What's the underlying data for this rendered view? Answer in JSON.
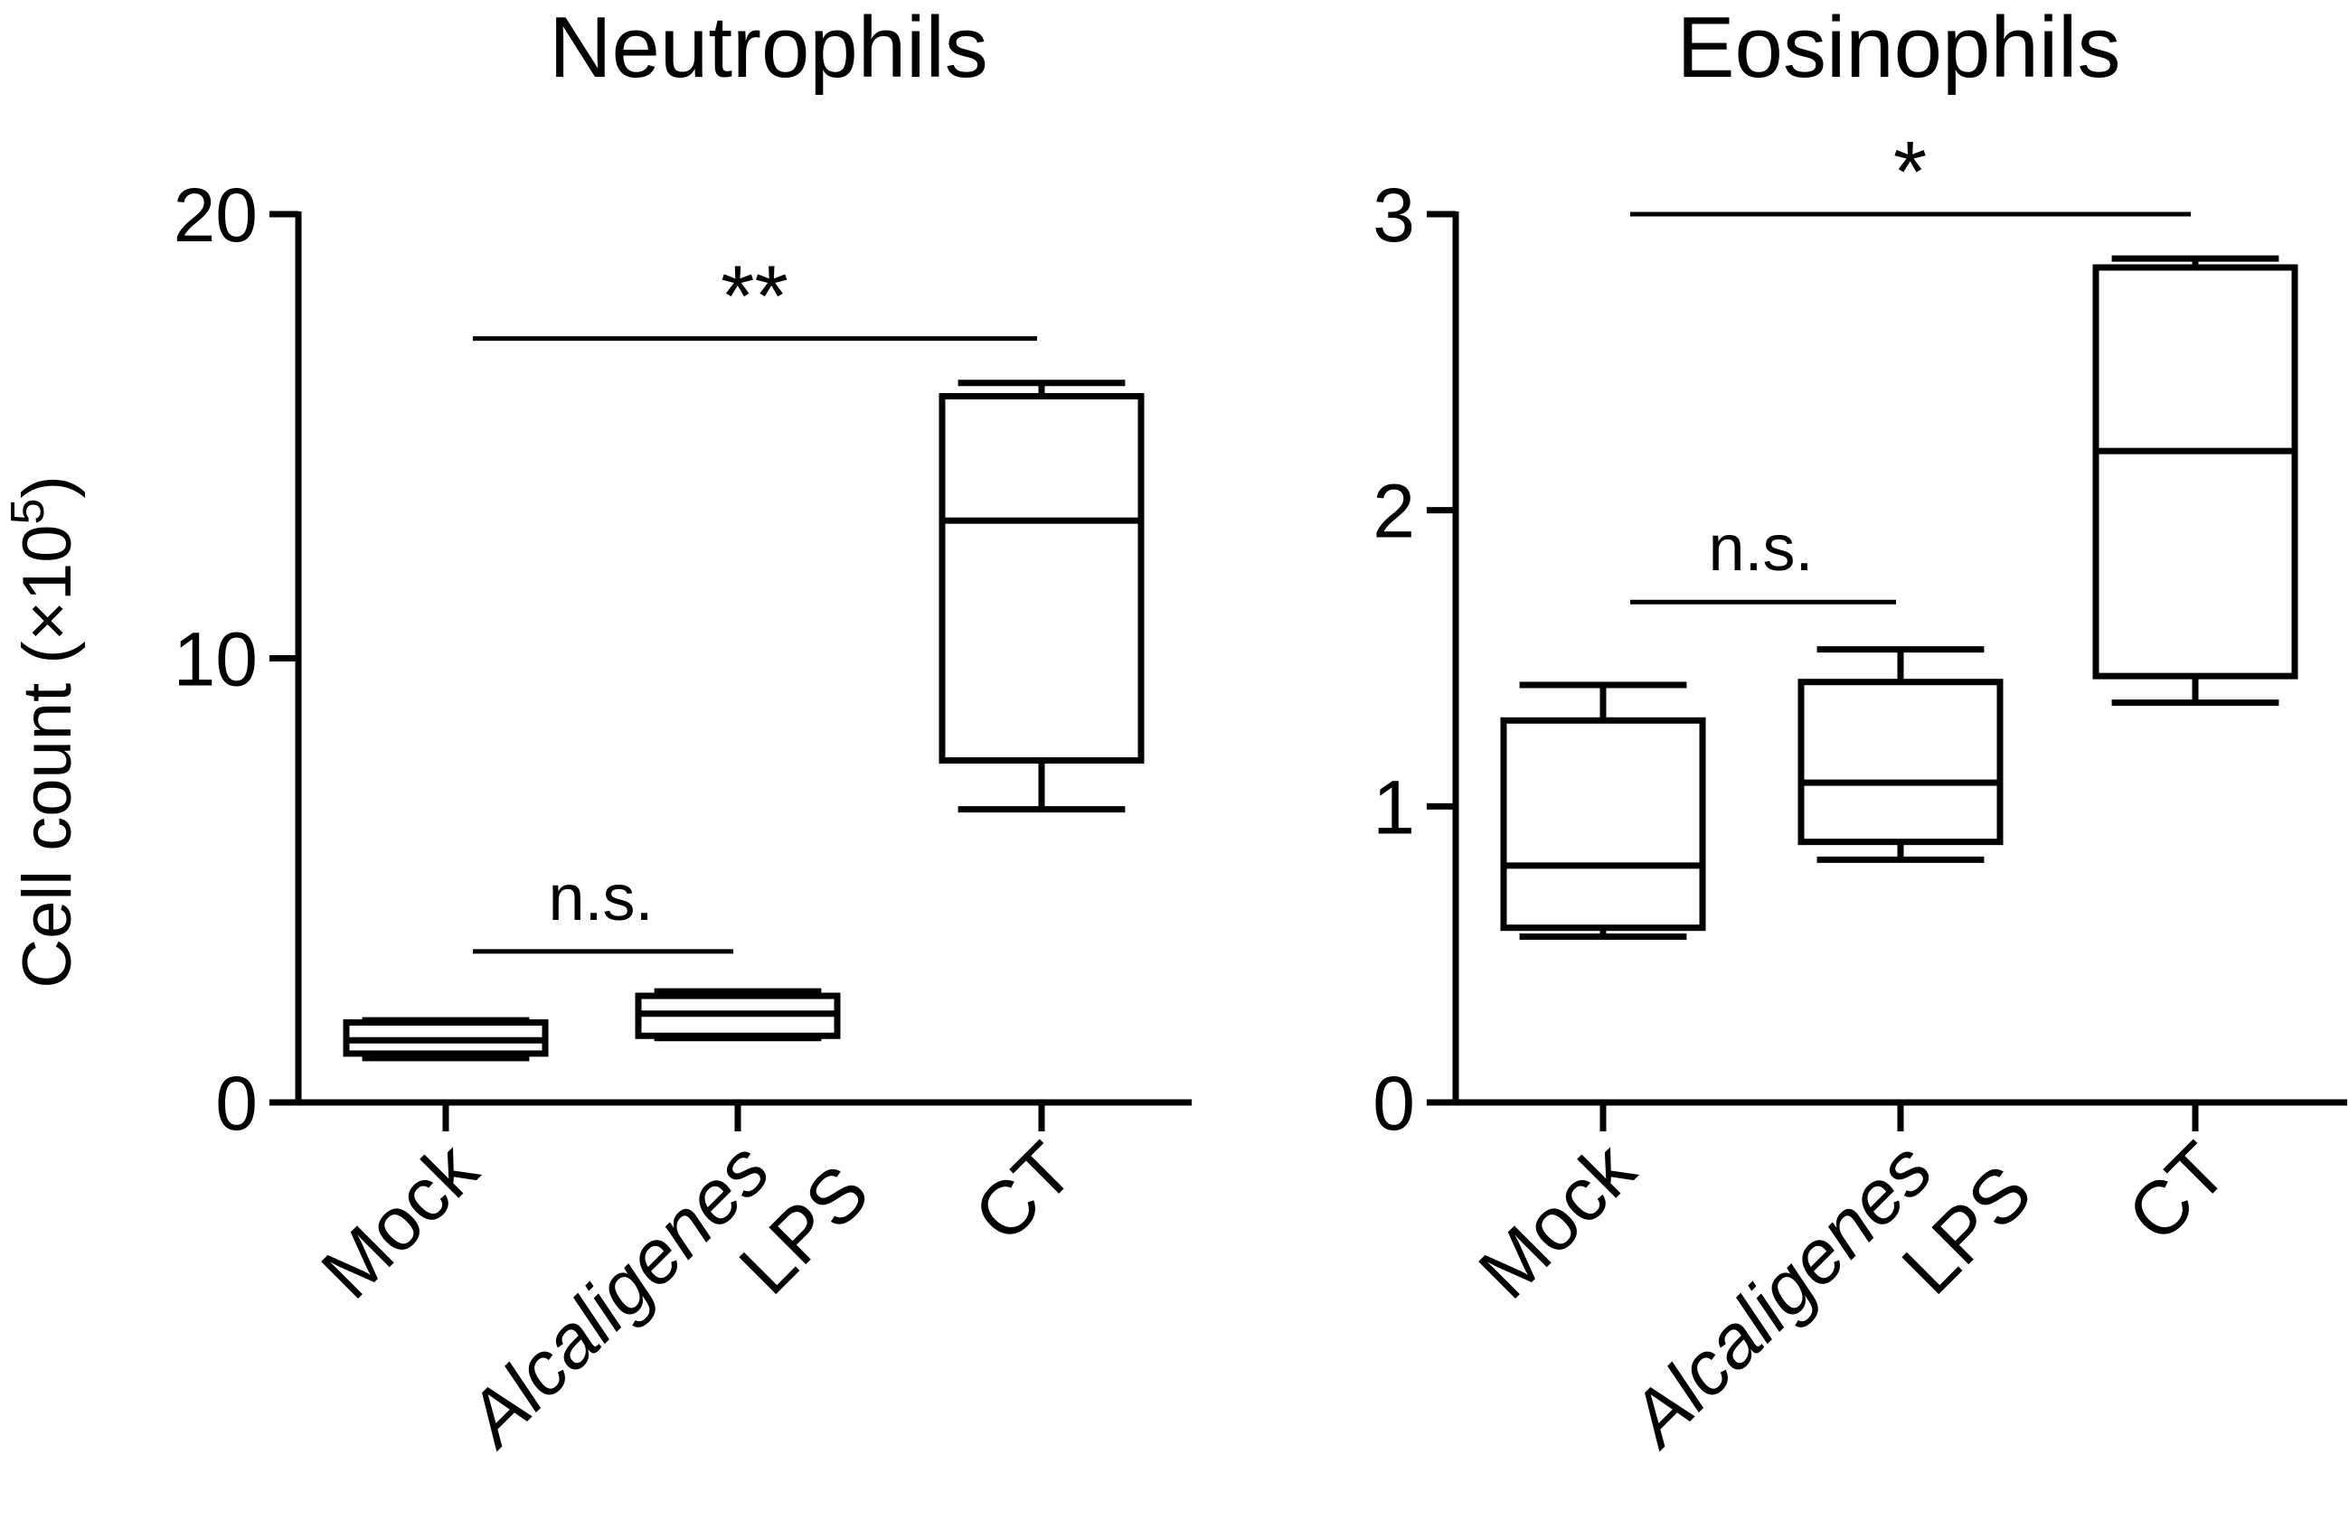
{
  "figure": {
    "ylabel": "Cell count (×10",
    "ylabel_sup": "5",
    "ylabel_close": ")"
  },
  "chart_data": [
    {
      "type": "box",
      "title": "Neutrophils",
      "ylim": [
        0,
        20
      ],
      "yticks": [
        "0",
        "10",
        "20"
      ],
      "ytick_values": [
        0,
        10,
        20
      ],
      "categories": [
        {
          "lines": [
            "Mock"
          ],
          "italic": [
            false
          ]
        },
        {
          "lines": [
            "Alcaligenes",
            "LPS"
          ],
          "italic": [
            true,
            false
          ]
        },
        {
          "lines": [
            "CT"
          ],
          "italic": [
            false
          ]
        }
      ],
      "boxes": [
        {
          "min": 1.0,
          "q1": 1.1,
          "median": 1.4,
          "q3": 1.8,
          "max": 1.85
        },
        {
          "min": 1.45,
          "q1": 1.5,
          "median": 2.0,
          "q3": 2.4,
          "max": 2.5
        },
        {
          "min": 6.6,
          "q1": 7.7,
          "median": 13.1,
          "q3": 15.9,
          "max": 16.2
        }
      ],
      "comparisons": [
        {
          "from": 0,
          "to": 1,
          "y": 3.4,
          "label": "n.s."
        },
        {
          "from": 0,
          "to": 2,
          "y": 17.2,
          "label": "**"
        }
      ]
    },
    {
      "type": "box",
      "title": "Eosinophils",
      "ylim": [
        0,
        3
      ],
      "yticks": [
        "0",
        "1",
        "2",
        "3"
      ],
      "ytick_values": [
        0,
        1,
        2,
        3
      ],
      "categories": [
        {
          "lines": [
            "Mock"
          ],
          "italic": [
            false
          ]
        },
        {
          "lines": [
            "Alcaligenes",
            "LPS"
          ],
          "italic": [
            true,
            false
          ]
        },
        {
          "lines": [
            "CT"
          ],
          "italic": [
            false
          ]
        }
      ],
      "boxes": [
        {
          "min": 0.56,
          "q1": 0.59,
          "median": 0.8,
          "q3": 1.29,
          "max": 1.41
        },
        {
          "min": 0.82,
          "q1": 0.88,
          "median": 1.08,
          "q3": 1.42,
          "max": 1.53
        },
        {
          "min": 1.35,
          "q1": 1.44,
          "median": 2.2,
          "q3": 2.82,
          "max": 2.85
        }
      ],
      "comparisons": [
        {
          "from": 0,
          "to": 1,
          "y": 1.69,
          "label": "n.s."
        },
        {
          "from": 0,
          "to": 2,
          "y": 3.0,
          "label": "*"
        }
      ]
    }
  ]
}
